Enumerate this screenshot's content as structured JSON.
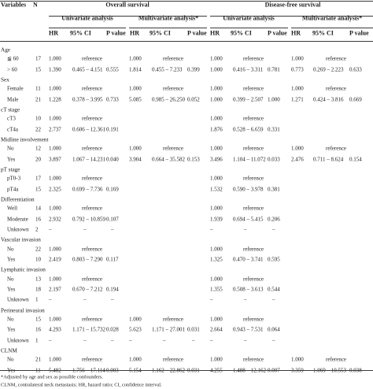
{
  "header": {
    "variables": "Variables",
    "n": "N",
    "overall": "Overall survival",
    "dfs": "Disease-free survival",
    "univariate": "Univariate analysis",
    "multivariate": "Multivariate analysis*",
    "hr": "HR",
    "ci": "95% CI",
    "p": "P value"
  },
  "sections": [
    {
      "title": "Age",
      "rows": [
        {
          "label": "≦ 60",
          "n": "17",
          "os_u": [
            "1.000",
            "reference",
            ""
          ],
          "os_m": [
            "1.000",
            "reference",
            ""
          ],
          "dfs_u": [
            "1.000",
            "reference",
            ""
          ],
          "dfs_m": [
            "1.000",
            "reference",
            ""
          ]
        },
        {
          "label": "> 60",
          "n": "15",
          "os_u": [
            "1.390",
            "0.465 – 4.151",
            "0.555"
          ],
          "os_m": [
            "1.814",
            "0.455 – 7.233",
            "0.399"
          ],
          "dfs_u": [
            "1.000",
            "0.416 – 3.311",
            "0.781"
          ],
          "dfs_m": [
            "0.773",
            "0.269 – 2.223",
            "0.633"
          ]
        }
      ]
    },
    {
      "title": "Sex",
      "rows": [
        {
          "label": "Female",
          "n": "11",
          "os_u": [
            "1.000",
            "reference",
            ""
          ],
          "os_m": [
            "1.000",
            "reference",
            ""
          ],
          "dfs_u": [
            "1.000",
            "reference",
            ""
          ],
          "dfs_m": [
            "1.000",
            "reference",
            ""
          ]
        },
        {
          "label": "Male",
          "n": "21",
          "os_u": [
            "1.228",
            "0.378 – 3.995",
            "0.733"
          ],
          "os_m": [
            "5.085",
            "0.985 – 26.250",
            "0.052"
          ],
          "dfs_u": [
            "1.000",
            "0.399 – 2.507",
            "1.000"
          ],
          "dfs_m": [
            "1.271",
            "0.424 – 3.816",
            "0.669"
          ]
        }
      ]
    },
    {
      "title": "cT stage",
      "rows": [
        {
          "label": "cT3",
          "n": "10",
          "os_u": [
            "1.000",
            "reference",
            ""
          ],
          "os_m": [
            "",
            "",
            ""
          ],
          "dfs_u": [
            "1.000",
            "reference",
            ""
          ],
          "dfs_m": [
            "",
            "",
            ""
          ]
        },
        {
          "label": "cT4a",
          "n": "22",
          "os_u": [
            "2.737",
            "0.606 – 12.361",
            "0.191"
          ],
          "os_m": [
            "",
            "",
            ""
          ],
          "dfs_u": [
            "1.876",
            "0.528 – 6.659",
            "0.331"
          ],
          "dfs_m": [
            "",
            "",
            ""
          ]
        }
      ]
    },
    {
      "title": "Midline involvement",
      "rows": [
        {
          "label": "No",
          "n": "12",
          "os_u": [
            "1.000",
            "reference",
            ""
          ],
          "os_m": [
            "1.000",
            "reference",
            ""
          ],
          "dfs_u": [
            "1.000",
            "reference",
            ""
          ],
          "dfs_m": [
            "1.000",
            "reference",
            ""
          ]
        },
        {
          "label": "Yes",
          "n": "20",
          "os_u": [
            "3.897",
            "1.067 – 14.231",
            "0.040"
          ],
          "os_m": [
            "3.904",
            "0.664 – 35.582",
            "0.153"
          ],
          "dfs_u": [
            "3.496",
            "1.104 – 11.072",
            "0.033"
          ],
          "dfs_m": [
            "2.476",
            "0.711 – 8.624",
            "0.154"
          ]
        }
      ]
    },
    {
      "title": "pT stage",
      "rows": [
        {
          "label": "pT0-3",
          "n": "17",
          "os_u": [
            "1.000",
            "reference",
            ""
          ],
          "os_m": [
            "",
            "",
            ""
          ],
          "dfs_u": [
            "1.000",
            "reference",
            ""
          ],
          "dfs_m": [
            "",
            "",
            ""
          ]
        },
        {
          "label": "pT4a",
          "n": "15",
          "os_u": [
            "2.325",
            "0.699 – 7.736",
            "0.169"
          ],
          "os_m": [
            "",
            "",
            ""
          ],
          "dfs_u": [
            "1.532",
            "0.590 – 3.978",
            "0.381"
          ],
          "dfs_m": [
            "",
            "",
            ""
          ]
        }
      ]
    },
    {
      "title": "Differentiation",
      "rows": [
        {
          "label": "Well",
          "n": "14",
          "os_u": [
            "1.000",
            "reference",
            ""
          ],
          "os_m": [
            "",
            "",
            ""
          ],
          "dfs_u": [
            "1.000",
            "reference",
            ""
          ],
          "dfs_m": [
            "",
            "",
            ""
          ]
        },
        {
          "label": "Moderate",
          "n": "16",
          "os_u": [
            "2.932",
            "0.792 – 10.859",
            "0.107"
          ],
          "os_m": [
            "",
            "",
            ""
          ],
          "dfs_u": [
            "1.939",
            "0.694 – 5.415",
            "0.206"
          ],
          "dfs_m": [
            "",
            "",
            ""
          ]
        },
        {
          "label": "Unknown",
          "n": "2",
          "os_u": [
            "–",
            "–",
            "–"
          ],
          "os_m": [
            "",
            "",
            ""
          ],
          "dfs_u": [
            "–",
            "–",
            "–"
          ],
          "dfs_m": [
            "",
            "",
            ""
          ]
        }
      ]
    },
    {
      "title": "Vascular invasion",
      "rows": [
        {
          "label": "No",
          "n": "22",
          "os_u": [
            "1.000",
            "reference",
            ""
          ],
          "os_m": [
            "",
            "",
            ""
          ],
          "dfs_u": [
            "1.000",
            "reference",
            ""
          ],
          "dfs_m": [
            "",
            "",
            ""
          ]
        },
        {
          "label": "Yes",
          "n": "10",
          "os_u": [
            "2.419",
            "0.803 – 7.290",
            "0.117"
          ],
          "os_m": [
            "",
            "",
            ""
          ],
          "dfs_u": [
            "1.325",
            "0.470 – 3.741",
            "0.595"
          ],
          "dfs_m": [
            "",
            "",
            ""
          ]
        }
      ]
    },
    {
      "title": "Lymphatic invasion",
      "rows": [
        {
          "label": "No",
          "n": "13",
          "os_u": [
            "1.000",
            "reference",
            ""
          ],
          "os_m": [
            "",
            "",
            ""
          ],
          "dfs_u": [
            "1.000",
            "reference",
            ""
          ],
          "dfs_m": [
            "",
            "",
            ""
          ]
        },
        {
          "label": "Yes",
          "n": "18",
          "os_u": [
            "2.197",
            "0.670 – 7.212",
            "0.194"
          ],
          "os_m": [
            "",
            "",
            ""
          ],
          "dfs_u": [
            "1.355",
            "0.508 – 3.613",
            "0.544"
          ],
          "dfs_m": [
            "",
            "",
            ""
          ]
        },
        {
          "label": "Unknown",
          "n": "1",
          "os_u": [
            "–",
            "–",
            "–"
          ],
          "os_m": [
            "",
            "",
            ""
          ],
          "dfs_u": [
            "–",
            "–",
            "–"
          ],
          "dfs_m": [
            "",
            "",
            ""
          ]
        }
      ]
    },
    {
      "title": "Perineural invasion",
      "rows": [
        {
          "label": "No",
          "n": "15",
          "os_u": [
            "1.000",
            "reference",
            ""
          ],
          "os_m": [
            "1.000",
            "reference",
            ""
          ],
          "dfs_u": [
            "1.000",
            "reference",
            ""
          ],
          "dfs_m": [
            "",
            "",
            ""
          ]
        },
        {
          "label": "Yes",
          "n": "16",
          "os_u": [
            "4.293",
            "1.171 – 15.732",
            "0.028"
          ],
          "os_m": [
            "5.623",
            "1.171 – 27.001",
            "0.031"
          ],
          "dfs_u": [
            "2.664",
            "0.943 – 7.531",
            "0.064"
          ],
          "dfs_m": [
            "",
            "",
            ""
          ]
        },
        {
          "label": "Unknown",
          "n": "1",
          "os_u": [
            "–",
            "–",
            "–"
          ],
          "os_m": [
            "–",
            "–",
            "–"
          ],
          "dfs_u": [
            "–",
            "–",
            "–"
          ],
          "dfs_m": [
            "",
            "",
            ""
          ]
        }
      ]
    },
    {
      "title": "CLNM",
      "rows": [
        {
          "label": "No",
          "n": "21",
          "os_u": [
            "1.000",
            "reference",
            ""
          ],
          "os_m": [
            "1.000",
            "reference",
            ""
          ],
          "dfs_u": [
            "1.000",
            "reference",
            ""
          ],
          "dfs_m": [
            "1.000",
            "reference",
            ""
          ]
        },
        {
          "label": "Yes",
          "n": "11",
          "os_u": [
            "5.482",
            "1.756 – 17.114",
            "0.003"
          ],
          "os_m": [
            "5.154",
            "1.162 – 22.862",
            "0.031"
          ],
          "dfs_u": [
            "4.255",
            "1.488 – 12.162",
            "0.007"
          ],
          "dfs_m": [
            "3.359",
            "1.069 – 10.553",
            "0.038"
          ]
        }
      ]
    }
  ],
  "footnotes": [
    "*Adjusted by age and sex as possible confounders.",
    "CLNM, contralateral neck metastasis; HR, hazard ratio; CI, confidence interval."
  ]
}
